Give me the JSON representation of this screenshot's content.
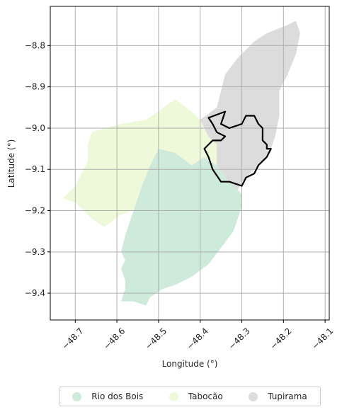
{
  "chart_data": {
    "type": "map",
    "title": "",
    "xlabel": "Longitude (°)",
    "ylabel": "Latitude (°)",
    "xlim": [
      -48.76,
      -48.09
    ],
    "ylim": [
      -9.465,
      -8.705
    ],
    "xticks": [
      -48.7,
      -48.6,
      -48.5,
      -48.4,
      -48.3,
      -48.2,
      -48.1
    ],
    "xtick_labels": [
      "−48.7",
      "−48.6",
      "−48.5",
      "−48.4",
      "−48.3",
      "−48.2",
      "−48.1"
    ],
    "yticks": [
      -8.8,
      -8.9,
      -9.0,
      -9.1,
      -9.2,
      -9.3,
      -9.4
    ],
    "ytick_labels": [
      "−8.8",
      "−8.9",
      "−9.0",
      "−9.1",
      "−9.2",
      "−9.3",
      "−9.4"
    ],
    "grid": true,
    "legend_position": "bottom-center",
    "regions": [
      {
        "name": "Rio dos Bois",
        "color": "#cdeadb",
        "coords": [
          [
            -48.5,
            -9.05
          ],
          [
            -48.46,
            -9.06
          ],
          [
            -48.42,
            -9.09
          ],
          [
            -48.39,
            -9.07
          ],
          [
            -48.36,
            -9.09
          ],
          [
            -48.33,
            -9.13
          ],
          [
            -48.31,
            -9.15
          ],
          [
            -48.3,
            -9.16
          ],
          [
            -48.3,
            -9.19
          ],
          [
            -48.31,
            -9.22
          ],
          [
            -48.32,
            -9.25
          ],
          [
            -48.35,
            -9.29
          ],
          [
            -48.38,
            -9.33
          ],
          [
            -48.42,
            -9.36
          ],
          [
            -48.46,
            -9.38
          ],
          [
            -48.49,
            -9.39
          ],
          [
            -48.52,
            -9.41
          ],
          [
            -48.53,
            -9.43
          ],
          [
            -48.56,
            -9.42
          ],
          [
            -48.59,
            -9.42
          ],
          [
            -48.58,
            -9.39
          ],
          [
            -48.58,
            -9.37
          ],
          [
            -48.59,
            -9.34
          ],
          [
            -48.58,
            -9.32
          ],
          [
            -48.59,
            -9.3
          ],
          [
            -48.58,
            -9.26
          ],
          [
            -48.56,
            -9.2
          ],
          [
            -48.54,
            -9.14
          ],
          [
            -48.52,
            -9.09
          ]
        ]
      },
      {
        "name": "Tabocão",
        "color": "#eef9da",
        "coords": [
          [
            -48.59,
            -8.99
          ],
          [
            -48.53,
            -8.98
          ],
          [
            -48.46,
            -8.93
          ],
          [
            -48.42,
            -8.96
          ],
          [
            -48.4,
            -8.98
          ],
          [
            -48.38,
            -9.02
          ],
          [
            -48.36,
            -9.04
          ],
          [
            -48.36,
            -9.09
          ],
          [
            -48.39,
            -9.07
          ],
          [
            -48.42,
            -9.09
          ],
          [
            -48.46,
            -9.06
          ],
          [
            -48.5,
            -9.05
          ],
          [
            -48.52,
            -9.09
          ],
          [
            -48.54,
            -9.14
          ],
          [
            -48.56,
            -9.2
          ],
          [
            -48.59,
            -9.21
          ],
          [
            -48.63,
            -9.24
          ],
          [
            -48.66,
            -9.22
          ],
          [
            -48.7,
            -9.18
          ],
          [
            -48.73,
            -9.17
          ],
          [
            -48.7,
            -9.14
          ],
          [
            -48.69,
            -9.12
          ],
          [
            -48.67,
            -9.08
          ],
          [
            -48.67,
            -9.04
          ],
          [
            -48.66,
            -9.01
          ],
          [
            -48.63,
            -9.0
          ]
        ]
      },
      {
        "name": "Tupirama",
        "color": "#dcdcdc",
        "coords": [
          [
            -48.4,
            -8.98
          ],
          [
            -48.36,
            -8.95
          ],
          [
            -48.34,
            -8.87
          ],
          [
            -48.31,
            -8.83
          ],
          [
            -48.27,
            -8.79
          ],
          [
            -48.24,
            -8.77
          ],
          [
            -48.19,
            -8.75
          ],
          [
            -48.17,
            -8.74
          ],
          [
            -48.16,
            -8.77
          ],
          [
            -48.17,
            -8.82
          ],
          [
            -48.19,
            -8.87
          ],
          [
            -48.21,
            -8.91
          ],
          [
            -48.21,
            -8.97
          ],
          [
            -48.22,
            -9.02
          ],
          [
            -48.23,
            -9.05
          ],
          [
            -48.25,
            -9.08
          ],
          [
            -48.27,
            -9.1
          ],
          [
            -48.29,
            -9.12
          ],
          [
            -48.3,
            -9.13
          ],
          [
            -48.31,
            -9.15
          ],
          [
            -48.33,
            -9.13
          ],
          [
            -48.36,
            -9.09
          ],
          [
            -48.36,
            -9.04
          ],
          [
            -48.38,
            -9.02
          ]
        ]
      }
    ],
    "outline": {
      "color": "#000000",
      "coords": [
        [
          -48.38,
          -8.975
        ],
        [
          -48.34,
          -8.96
        ],
        [
          -48.35,
          -8.99
        ],
        [
          -48.33,
          -9.0
        ],
        [
          -48.3,
          -8.99
        ],
        [
          -48.29,
          -8.97
        ],
        [
          -48.27,
          -8.97
        ],
        [
          -48.26,
          -8.99
        ],
        [
          -48.25,
          -9.0
        ],
        [
          -48.25,
          -9.03
        ],
        [
          -48.24,
          -9.04
        ],
        [
          -48.24,
          -9.05
        ],
        [
          -48.23,
          -9.05
        ],
        [
          -48.24,
          -9.07
        ],
        [
          -48.26,
          -9.09
        ],
        [
          -48.27,
          -9.11
        ],
        [
          -48.29,
          -9.12
        ],
        [
          -48.3,
          -9.14
        ],
        [
          -48.33,
          -9.13
        ],
        [
          -48.35,
          -9.13
        ],
        [
          -48.37,
          -9.1
        ],
        [
          -48.38,
          -9.07
        ],
        [
          -48.39,
          -9.05
        ],
        [
          -48.37,
          -9.03
        ],
        [
          -48.35,
          -9.03
        ],
        [
          -48.34,
          -9.02
        ],
        [
          -48.36,
          -9.01
        ],
        [
          -48.37,
          -8.99
        ]
      ]
    }
  }
}
